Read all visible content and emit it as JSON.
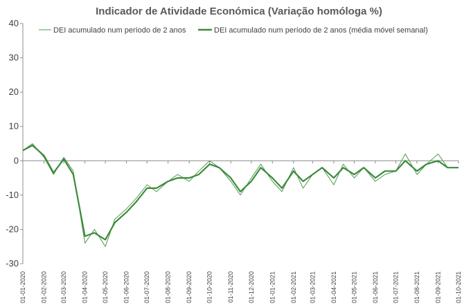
{
  "chart_data": {
    "type": "line",
    "title": "Indicador de Atividade Económica (Variação homóloga %)",
    "xlabel": "",
    "ylabel": "",
    "ylim": [
      -30,
      40
    ],
    "yticks": [
      40,
      30,
      20,
      10,
      0,
      -10,
      -20,
      -30
    ],
    "grid": false,
    "legend": "top",
    "x_ticks": [
      "01-01-2020",
      "01-02-2020",
      "01-03-2020",
      "01-04-2020",
      "01-05-2020",
      "01-06-2020",
      "01-07-2020",
      "01-08-2020",
      "01-09-2020",
      "01-10-2020",
      "01-11-2020",
      "01-12-2020",
      "01-01-2021",
      "01-02-2021",
      "01-03-2021",
      "01-04-2021",
      "01-05-2021",
      "01-06-2021",
      "01-07-2021",
      "01-08-2021",
      "01-09-2021",
      "01-10-2021"
    ],
    "x": [
      "01-01-2020",
      "15-01-2020",
      "01-02-2020",
      "15-02-2020",
      "01-03-2020",
      "15-03-2020",
      "01-04-2020",
      "15-04-2020",
      "01-05-2020",
      "15-05-2020",
      "01-06-2020",
      "15-06-2020",
      "01-07-2020",
      "15-07-2020",
      "01-08-2020",
      "15-08-2020",
      "01-09-2020",
      "15-09-2020",
      "01-10-2020",
      "15-10-2020",
      "01-11-2020",
      "15-11-2020",
      "01-12-2020",
      "15-12-2020",
      "01-01-2021",
      "15-01-2021",
      "01-02-2021",
      "15-02-2021",
      "01-03-2021",
      "15-03-2021",
      "01-04-2021",
      "15-04-2021",
      "01-05-2021",
      "15-05-2021",
      "01-06-2021",
      "15-06-2021",
      "01-07-2021",
      "15-07-2021",
      "01-08-2021",
      "15-08-2021",
      "01-09-2021",
      "15-09-2021",
      "01-10-2021"
    ],
    "series": [
      {
        "name": "DEI acumulado num período de 2 anos",
        "color": "#4e9a4e",
        "style": "thin",
        "values": [
          3,
          5,
          1,
          -4,
          1,
          -3,
          -24,
          -20,
          -25,
          -17,
          -14,
          -11,
          -7,
          -9,
          -6,
          -4,
          -6,
          -3,
          0,
          -2,
          -6,
          -10,
          -5,
          -1,
          -6,
          -9,
          -2,
          -8,
          -4,
          -2,
          -7,
          -1,
          -5,
          -2,
          -6,
          -4,
          -3,
          2,
          -4,
          -1,
          2,
          -2,
          -2
        ]
      },
      {
        "name": "DEI acumulado num período de 2 anos (média móvel semanal)",
        "color": "#3e8a3e",
        "style": "thick",
        "values": [
          3,
          4.5,
          1.5,
          -3.5,
          0.5,
          -4,
          -22,
          -21,
          -23,
          -18,
          -15,
          -12,
          -8,
          -8,
          -6,
          -5,
          -5,
          -4,
          -1,
          -2,
          -5,
          -9,
          -6,
          -2,
          -5,
          -8,
          -3,
          -6,
          -4,
          -2,
          -5,
          -2,
          -4,
          -2,
          -5,
          -3,
          -3,
          0,
          -3,
          -1,
          0,
          -2,
          -2
        ]
      }
    ]
  }
}
